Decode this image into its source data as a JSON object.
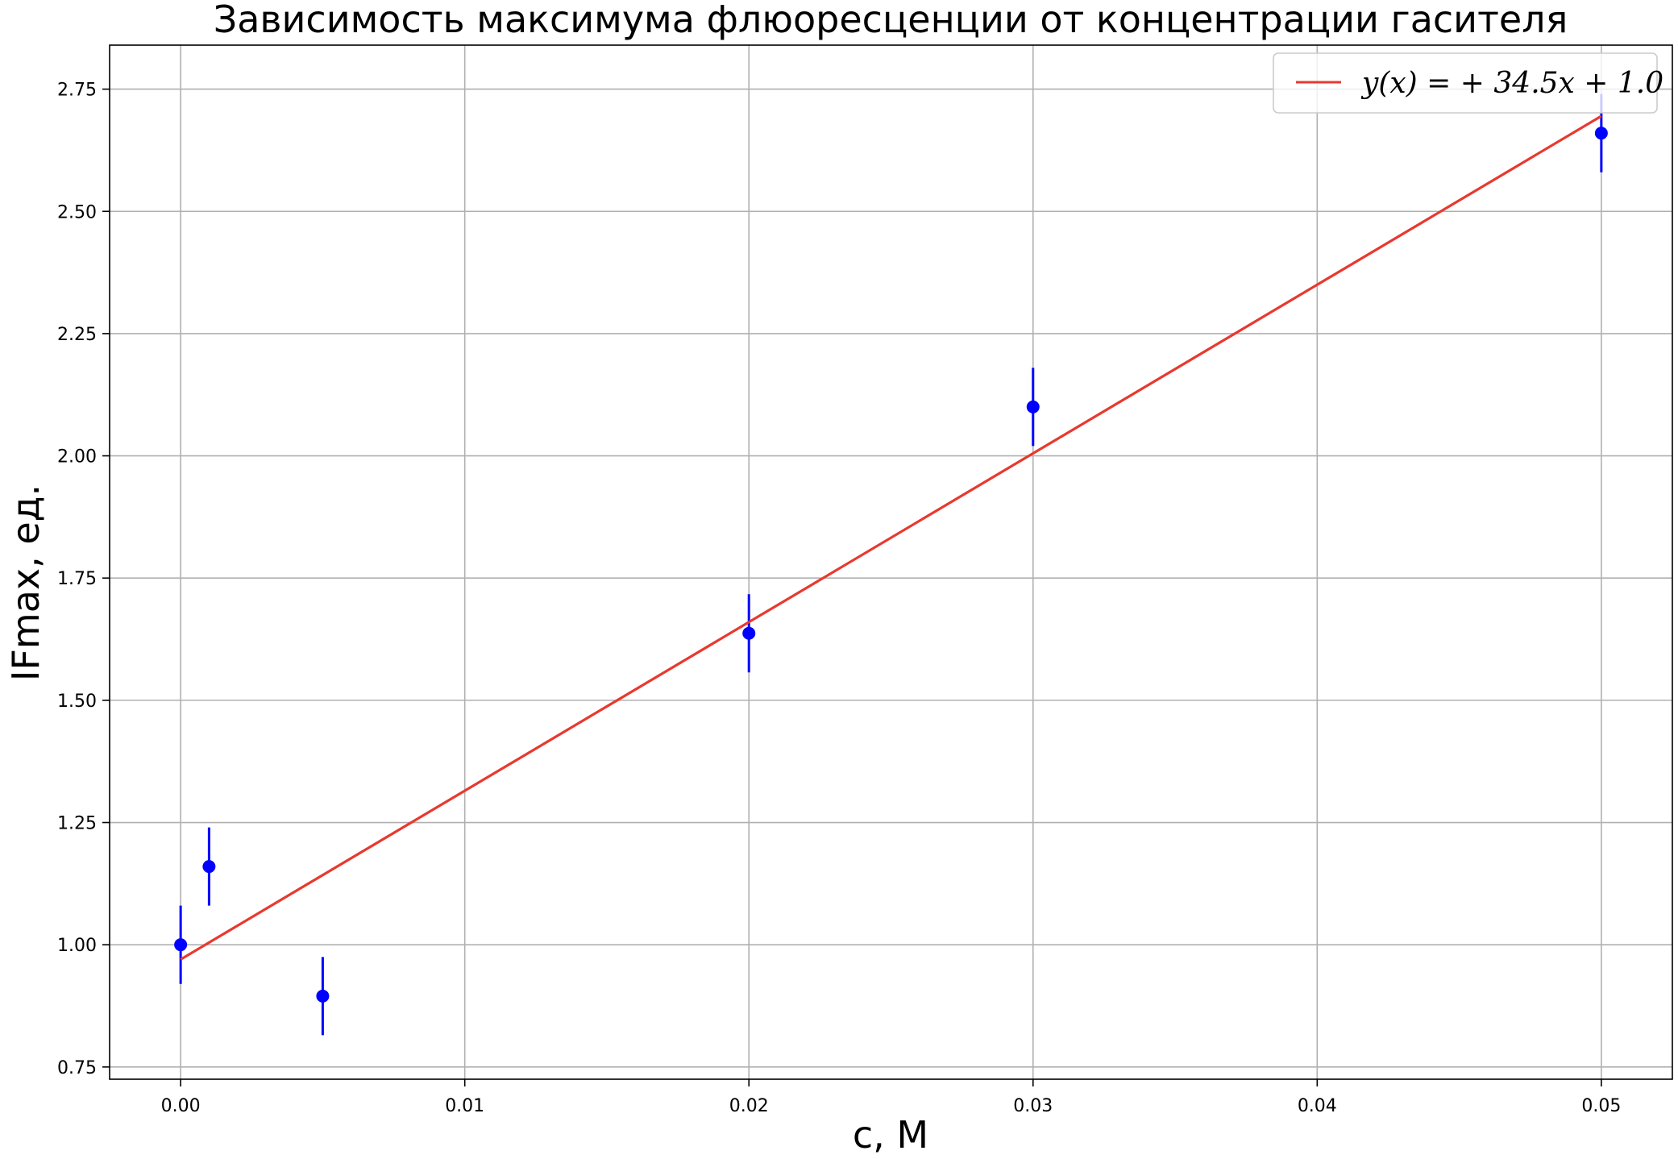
{
  "chart_data": {
    "type": "scatter",
    "title": "Зависимость максимума флюоресценции от концентрации гасителя",
    "xlabel": "c, М",
    "ylabel": "IFmax, ед.",
    "xlim": [
      -0.0025,
      0.0525
    ],
    "ylim": [
      0.725,
      2.84
    ],
    "grid": true,
    "legend_position": "top-right",
    "x_ticks": [
      0.0,
      0.01,
      0.02,
      0.03,
      0.04,
      0.05
    ],
    "x_tick_labels": [
      "0.00",
      "0.01",
      "0.02",
      "0.03",
      "0.04",
      "0.05"
    ],
    "y_ticks": [
      0.75,
      1.0,
      1.25,
      1.5,
      1.75,
      2.0,
      2.25,
      2.5,
      2.75
    ],
    "y_tick_labels": [
      "0.75",
      "1.00",
      "1.25",
      "1.50",
      "1.75",
      "2.00",
      "2.25",
      "2.50",
      "2.75"
    ],
    "series": [
      {
        "kind": "errorbar",
        "color": "#0000ff",
        "x": [
          0.0,
          0.001,
          0.005,
          0.02,
          0.03,
          0.05
        ],
        "y": [
          1.0,
          1.16,
          0.895,
          1.637,
          2.1,
          2.66
        ],
        "yerr": [
          0.08,
          0.08,
          0.08,
          0.08,
          0.08,
          0.08
        ]
      },
      {
        "kind": "line",
        "name": "$y(x) = +34.5x + 1.0$",
        "color": "#e8392f",
        "slope": 34.5,
        "intercept": 0.97,
        "x_range": [
          0.0,
          0.05
        ]
      }
    ],
    "legend": {
      "label_display": "y(x) = + 34.5x + 1.0"
    }
  }
}
